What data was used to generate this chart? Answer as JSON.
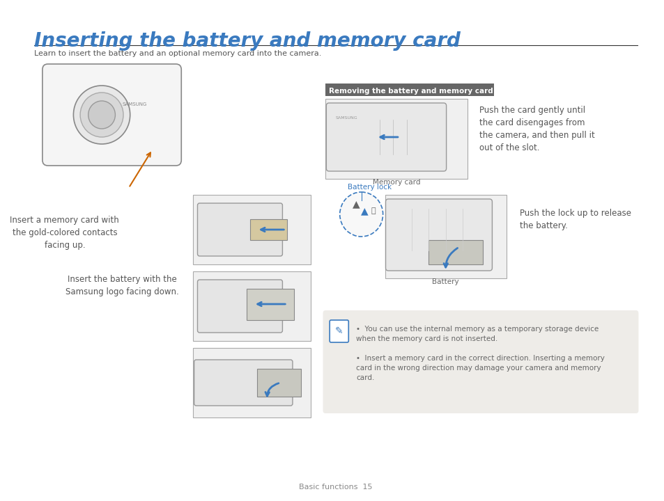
{
  "title": "Inserting the battery and memory card",
  "title_color": "#3a7abf",
  "subtitle": "Learn to insert the battery and an optional memory card into the camera.",
  "subtitle_color": "#555555",
  "separator_color": "#333333",
  "bg_color": "#ffffff",
  "footer_text": "Basic functions  15",
  "footer_color": "#888888",
  "section_label": "Removing the battery and memory card",
  "section_label_bg": "#555555",
  "section_label_color": "#ffffff",
  "left_text1": "Insert a memory card with\nthe gold-colored contacts\nfacing up.",
  "left_text2": "Insert the battery with the\nSamsung logo facing down.",
  "right_text1": "Push the card gently until\nthe card disengages from\nthe camera, and then pull it\nout of the slot.",
  "right_text2": "Push the lock up to release\nthe battery.",
  "memory_card_label": "Memory card",
  "battery_label": "Battery",
  "battery_lock_label": "Battery lock",
  "note_text1": "You can use the internal memory as a temporary storage device\nwhen the memory card is not inserted.",
  "note_text2": "Insert a memory card in the correct direction. Inserting a memory\ncard in the wrong direction may damage your camera and memory\ncard.",
  "note_bg": "#eeece8",
  "note_text_color": "#666666"
}
